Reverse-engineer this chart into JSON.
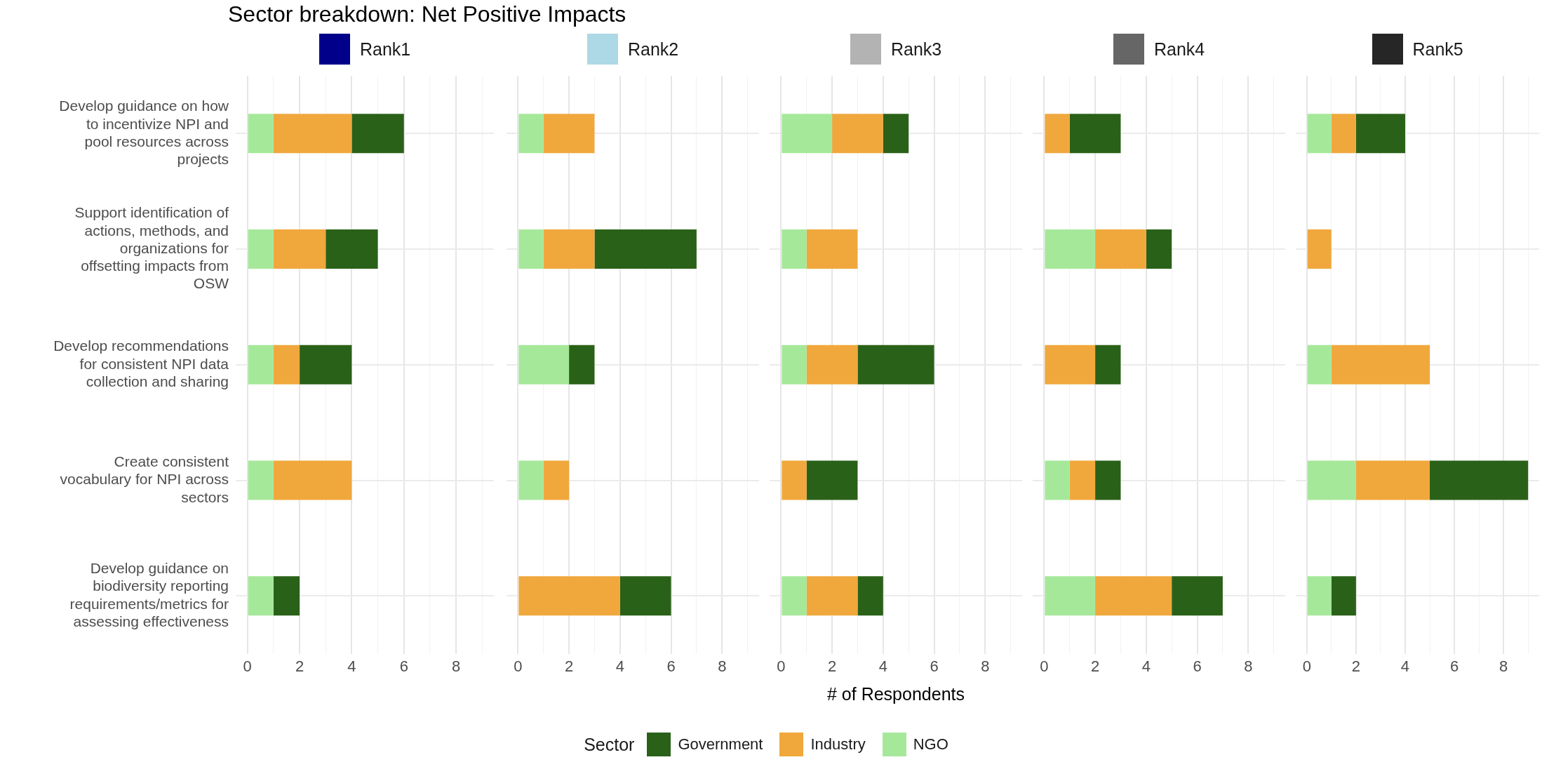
{
  "chart_data": [
    {
      "type": "bar",
      "orientation": "horizontal",
      "stacked": true,
      "title": "Sector breakdown: Net Positive Impacts",
      "subtitle": "Rank1",
      "legend": "bottom",
      "legend_title": "Sector",
      "grid": true,
      "categories": [
        "Develop guidance on how to incentivize NPI and pool resources across projects",
        "Support identification of actions, methods, and organizations for offsetting impacts from OSW",
        "Develop recommendations for consistent NPI data collection and sharing",
        "Create consistent vocabulary for NPI across sectors",
        "Develop guidance on biodiversity reporting requirements/metrics for assessing effectiveness"
      ],
      "xlim": [
        -0.45,
        9.45
      ],
      "xticks": [
        0,
        {
          "value": 1,
          "label": null
        },
        2,
        {
          "value": 3,
          "label": null
        },
        4,
        {
          "value": 5,
          "label": null
        },
        6,
        {
          "value": 7,
          "label": null
        },
        8,
        {
          "value": 9,
          "label": null
        }
      ],
      "series": [
        {
          "name": "NGO",
          "color": "#a6e89a",
          "values": [
            1,
            1,
            1,
            1,
            1
          ]
        },
        {
          "name": "Industry",
          "color": "#f0a83c",
          "values": [
            3,
            2,
            1,
            3,
            0
          ]
        },
        {
          "name": "Government",
          "color": "#2a6118",
          "values": [
            2,
            2,
            2,
            0,
            1
          ]
        }
      ]
    },
    {
      "type": "bar",
      "orientation": "horizontal",
      "stacked": true,
      "subtitle": "Rank2",
      "grid": true,
      "tick_labels": "x",
      "categories": [
        null,
        null,
        null,
        null,
        null
      ],
      "xlim": [
        -0.45,
        9.45
      ],
      "xticks": [
        0,
        {
          "value": 1,
          "label": null
        },
        2,
        {
          "value": 3,
          "label": null
        },
        4,
        {
          "value": 5,
          "label": null
        },
        6,
        {
          "value": 7,
          "label": null
        },
        8,
        {
          "value": 9,
          "label": null
        }
      ],
      "series": [
        {
          "color": "#a6e89a",
          "values": [
            1,
            1,
            2,
            1,
            0
          ]
        },
        {
          "color": "#f0a83c",
          "values": [
            2,
            2,
            0,
            1,
            4
          ]
        },
        {
          "color": "#2a6118",
          "values": [
            0,
            4,
            1,
            0,
            2
          ]
        }
      ]
    },
    {
      "type": "bar",
      "orientation": "horizontal",
      "stacked": true,
      "subtitle": "Rank3",
      "xlabel": "# of Respondents",
      "grid": true,
      "tick_labels": "x",
      "categories": [
        null,
        null,
        null,
        null,
        null
      ],
      "xlim": [
        -0.45,
        9.45
      ],
      "xticks": [
        0,
        {
          "value": 1,
          "label": null
        },
        2,
        {
          "value": 3,
          "label": null
        },
        4,
        {
          "value": 5,
          "label": null
        },
        6,
        {
          "value": 7,
          "label": null
        },
        8,
        {
          "value": 9,
          "label": null
        }
      ],
      "series": [
        {
          "color": "#a6e89a",
          "values": [
            2,
            1,
            1,
            0,
            1
          ]
        },
        {
          "color": "#f0a83c",
          "values": [
            2,
            2,
            2,
            1,
            2
          ]
        },
        {
          "color": "#2a6118",
          "values": [
            1,
            0,
            3,
            2,
            1
          ]
        }
      ]
    },
    {
      "type": "bar",
      "orientation": "horizontal",
      "stacked": true,
      "subtitle": "Rank4",
      "grid": true,
      "tick_labels": "x",
      "categories": [
        null,
        null,
        null,
        null,
        null
      ],
      "xlim": [
        -0.45,
        9.45
      ],
      "xticks": [
        0,
        {
          "value": 1,
          "label": null
        },
        2,
        {
          "value": 3,
          "label": null
        },
        4,
        {
          "value": 5,
          "label": null
        },
        6,
        {
          "value": 7,
          "label": null
        },
        8,
        {
          "value": 9,
          "label": null
        }
      ],
      "series": [
        {
          "color": "#a6e89a",
          "values": [
            0,
            2,
            0,
            1,
            2
          ]
        },
        {
          "color": "#f0a83c",
          "values": [
            1,
            2,
            2,
            1,
            3
          ]
        },
        {
          "color": "#2a6118",
          "values": [
            2,
            1,
            1,
            1,
            2
          ]
        }
      ]
    },
    {
      "type": "bar",
      "orientation": "horizontal",
      "stacked": true,
      "subtitle": "Rank5",
      "grid": true,
      "tick_labels": "x",
      "categories": [
        null,
        null,
        null,
        null,
        null
      ],
      "xlim": [
        -0.45,
        9.45
      ],
      "xticks": [
        0,
        {
          "value": 1,
          "label": null
        },
        2,
        {
          "value": 3,
          "label": null
        },
        4,
        {
          "value": 5,
          "label": null
        },
        6,
        {
          "value": 7,
          "label": null
        },
        8,
        {
          "value": 9,
          "label": null
        }
      ],
      "series": [
        {
          "color": "#a6e89a",
          "values": [
            1,
            0,
            1,
            2,
            1
          ]
        },
        {
          "color": "#f0a83c",
          "values": [
            1,
            1,
            4,
            3,
            0
          ]
        },
        {
          "color": "#2a6118",
          "values": [
            2,
            0,
            0,
            4,
            1
          ]
        }
      ]
    }
  ]
}
